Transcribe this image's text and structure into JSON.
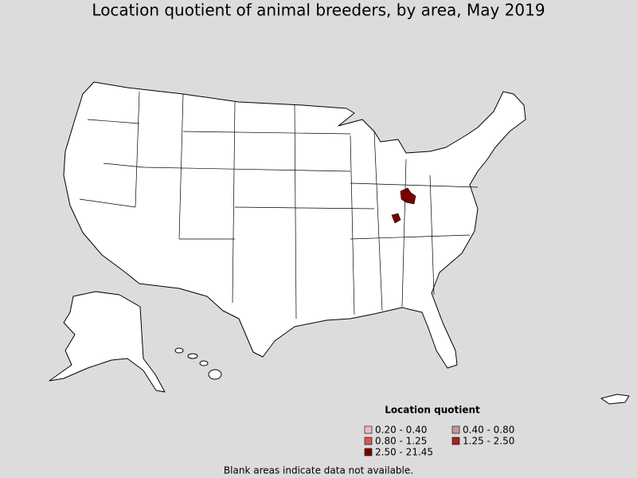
{
  "title": "Location quotient of animal breeders, by area, May 2019",
  "legend": {
    "title": "Location quotient",
    "items": [
      {
        "label": "0.20 - 0.40",
        "color": "#f2b8b8"
      },
      {
        "label": "0.40 - 0.80",
        "color": "#c49898"
      },
      {
        "label": "0.80 - 1.25",
        "color": "#d45858"
      },
      {
        "label": "1.25 - 2.50",
        "color": "#a82222"
      },
      {
        "label": "2.50 - 21.45",
        "color": "#7a0000"
      }
    ]
  },
  "note": "Blank areas indicate data not available."
}
